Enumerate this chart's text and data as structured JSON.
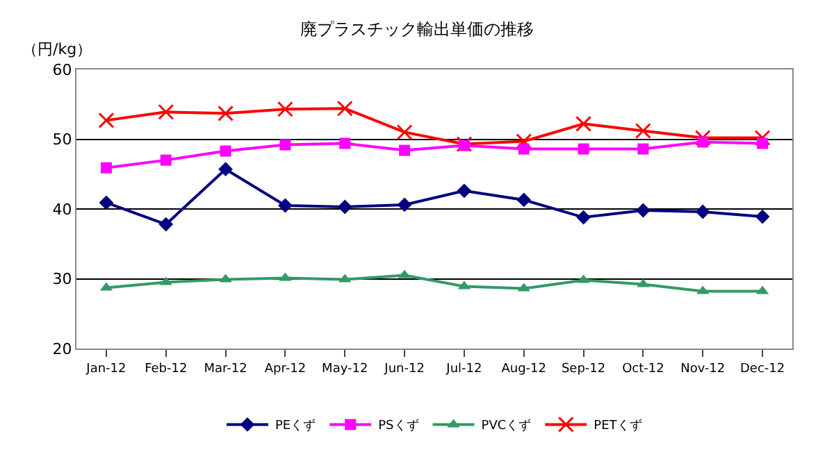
{
  "chart_data": {
    "type": "line",
    "title": "廃プラスチック輸出単価の推移",
    "ylabel": "（円/kg）",
    "categories": [
      "Jan-12",
      "Feb-12",
      "Mar-12",
      "Apr-12",
      "May-12",
      "Jun-12",
      "Jul-12",
      "Aug-12",
      "Sep-12",
      "Oct-12",
      "Nov-12",
      "Dec-12"
    ],
    "series": [
      {
        "name": "PEくず",
        "color": "#000080",
        "marker": "diamond",
        "values": [
          40.9,
          37.8,
          45.7,
          40.5,
          40.3,
          40.6,
          42.6,
          41.3,
          38.8,
          39.8,
          39.6,
          38.9
        ]
      },
      {
        "name": "PSくず",
        "color": "#ff00ff",
        "marker": "square",
        "values": [
          45.9,
          47.0,
          48.3,
          49.2,
          49.4,
          48.4,
          49.1,
          48.6,
          48.6,
          48.6,
          49.6,
          49.4
        ]
      },
      {
        "name": "PVCくず",
        "color": "#339966",
        "marker": "triangle",
        "values": [
          28.7,
          29.5,
          29.9,
          30.1,
          29.9,
          30.5,
          28.9,
          28.6,
          29.8,
          29.2,
          28.2,
          28.2
        ]
      },
      {
        "name": "PETくず",
        "color": "#ff0000",
        "marker": "cross",
        "values": [
          52.7,
          53.9,
          53.7,
          54.3,
          54.4,
          51.0,
          49.3,
          49.7,
          52.2,
          51.2,
          50.2,
          50.2
        ]
      }
    ],
    "ylim": [
      20,
      60
    ],
    "yticks": [
      20,
      30,
      40,
      50,
      60
    ],
    "grid": "y",
    "legend": "bottom"
  }
}
